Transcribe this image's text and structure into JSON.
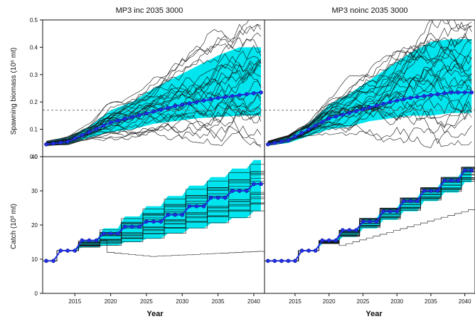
{
  "panels": [
    {
      "title": "MP3 inc 2035 3000"
    },
    {
      "title": "MP3 noinc 2035 3000"
    }
  ],
  "y_top_label": "Spawning biomass (10⁶ mt)",
  "y_bottom_label": "Catch (10³ mt)",
  "x_label": "Year",
  "colors": {
    "band": "#00e5ee",
    "median": "#1f2fe0",
    "trace": "#111111",
    "ref": "#777777"
  },
  "chart_data": [
    {
      "type": "line",
      "title": "MP3 inc 2035 3000",
      "ylabel": "Spawning biomass (10⁶ mt)",
      "xlim": [
        2010.5,
        2041.5
      ],
      "ylim": [
        0,
        0.5
      ],
      "yticks": [
        "0.0",
        "0.1",
        "0.2",
        "0.3",
        "0.4",
        "0.5"
      ],
      "reference_line": 0.17,
      "median": {
        "x": [
          2011,
          2014,
          2017,
          2020,
          2023,
          2026,
          2029,
          2032,
          2035,
          2038,
          2041
        ],
        "y": [
          0.045,
          0.055,
          0.09,
          0.125,
          0.145,
          0.165,
          0.185,
          0.2,
          0.215,
          0.225,
          0.235
        ]
      },
      "band_lower": [
        0.04,
        0.045,
        0.07,
        0.09,
        0.1,
        0.12,
        0.13,
        0.14,
        0.145,
        0.15,
        0.15
      ],
      "band_upper": [
        0.055,
        0.07,
        0.11,
        0.17,
        0.2,
        0.25,
        0.29,
        0.33,
        0.37,
        0.4,
        0.4
      ]
    },
    {
      "type": "line",
      "title": "MP3 noinc 2035 3000",
      "ylabel": "Spawning biomass (10⁶ mt)",
      "xlim": [
        2010.5,
        2041.5
      ],
      "ylim": [
        0,
        0.5
      ],
      "reference_line": 0.17,
      "median": {
        "x": [
          2011,
          2014,
          2017,
          2020,
          2023,
          2026,
          2029,
          2032,
          2035,
          2038,
          2041
        ],
        "y": [
          0.045,
          0.06,
          0.1,
          0.14,
          0.16,
          0.18,
          0.2,
          0.215,
          0.225,
          0.235,
          0.235
        ]
      },
      "band_lower": [
        0.04,
        0.05,
        0.075,
        0.1,
        0.11,
        0.13,
        0.14,
        0.15,
        0.15,
        0.16,
        0.16
      ],
      "band_upper": [
        0.055,
        0.075,
        0.12,
        0.19,
        0.23,
        0.28,
        0.33,
        0.38,
        0.42,
        0.43,
        0.43
      ]
    },
    {
      "type": "line",
      "title": "",
      "ylabel": "Catch (10³ mt)",
      "xlabel": "Year",
      "xlim": [
        2010.5,
        2041.5
      ],
      "ylim": [
        0,
        40
      ],
      "xticks": [
        "2015",
        "2020",
        "2025",
        "2030",
        "2035",
        "2040"
      ],
      "yticks": [
        "0",
        "10",
        "20",
        "30",
        "40"
      ],
      "median": {
        "x": [
          2011,
          2012,
          2013,
          2014,
          2015,
          2016,
          2017,
          2018,
          2019,
          2020,
          2021,
          2022,
          2023,
          2024,
          2025,
          2026,
          2027,
          2028,
          2029,
          2030,
          2031,
          2032,
          2033,
          2034,
          2035,
          2036,
          2037,
          2038,
          2039,
          2040,
          2041
        ],
        "y": [
          9.5,
          9.5,
          12.5,
          12.5,
          12.5,
          15.5,
          15.5,
          15.5,
          17.5,
          17.5,
          17.5,
          19.5,
          19.5,
          19.5,
          21,
          21,
          21,
          23,
          23,
          23,
          25.5,
          25.5,
          25.5,
          28,
          28,
          28,
          30,
          30,
          30,
          32,
          32
        ]
      },
      "band_lower": [
        9.5,
        9.5,
        12.5,
        12.5,
        12.5,
        13.5,
        13.5,
        13.5,
        14,
        14,
        14,
        15,
        15,
        15,
        16,
        16,
        16,
        17.5,
        17.5,
        17.5,
        19,
        19,
        19,
        20.5,
        20.5,
        20.5,
        22,
        22,
        22,
        24,
        24
      ],
      "band_upper": [
        9.5,
        9.5,
        12.5,
        12.5,
        12.5,
        15.5,
        15.5,
        15.5,
        19,
        19,
        19,
        22.5,
        22.5,
        22.5,
        25.5,
        25.5,
        25.5,
        28.5,
        28.5,
        28.5,
        31.5,
        31.5,
        31.5,
        34,
        34,
        34,
        36.5,
        36.5,
        36.5,
        39,
        39
      ]
    },
    {
      "type": "line",
      "title": "",
      "ylabel": "Catch (10³ mt)",
      "xlabel": "Year",
      "xlim": [
        2010.5,
        2041.5
      ],
      "ylim": [
        0,
        40
      ],
      "xticks": [
        "2015",
        "2020",
        "2025",
        "2030",
        "2035",
        "2040"
      ],
      "median": {
        "x": [
          2011,
          2012,
          2013,
          2014,
          2015,
          2016,
          2017,
          2018,
          2019,
          2020,
          2021,
          2022,
          2023,
          2024,
          2025,
          2026,
          2027,
          2028,
          2029,
          2030,
          2031,
          2032,
          2033,
          2034,
          2035,
          2036,
          2037,
          2038,
          2039,
          2040,
          2041
        ],
        "y": [
          9.5,
          9.5,
          9.5,
          9.5,
          9.5,
          12.5,
          12.5,
          12.5,
          15.5,
          15.5,
          15.5,
          18.5,
          18.5,
          18.5,
          21,
          21,
          21,
          24,
          24,
          24,
          27,
          27,
          27,
          30,
          30,
          30,
          33,
          33,
          33,
          36,
          36
        ]
      },
      "band_lower": [
        9.5,
        9.5,
        9.5,
        9.5,
        9.5,
        12.5,
        12.5,
        12.5,
        14.5,
        14.5,
        14.5,
        16.5,
        16.5,
        16.5,
        19,
        19,
        19,
        21.5,
        21.5,
        21.5,
        24,
        24,
        24,
        27,
        27,
        27,
        29.5,
        29.5,
        29.5,
        32.5,
        32.5
      ],
      "band_upper": [
        9.5,
        9.5,
        9.5,
        9.5,
        9.5,
        12.5,
        12.5,
        12.5,
        15.5,
        15.5,
        15.5,
        18.5,
        18.5,
        18.5,
        22,
        22,
        22,
        25,
        25,
        25,
        28,
        28,
        28,
        31,
        31,
        31,
        34,
        34,
        34,
        37,
        37
      ]
    }
  ]
}
